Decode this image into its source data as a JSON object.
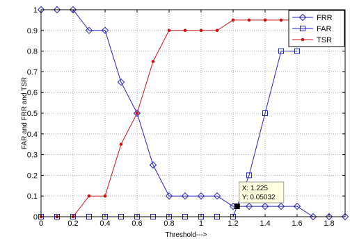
{
  "chart_data": {
    "type": "line",
    "xlabel": "Threshold--->",
    "ylabel": "FAR and FRR and TSR",
    "xlim": [
      0,
      1.9
    ],
    "ylim": [
      0,
      1
    ],
    "xticks": [
      "0",
      "0.2",
      "0.4",
      "0.6",
      "0.8",
      "1",
      "1.2",
      "1.4",
      "1.6",
      "1.8"
    ],
    "yticks": [
      "0",
      "0.1",
      "0.2",
      "0.3",
      "0.4",
      "0.5",
      "0.6",
      "0.7",
      "0.8",
      "0.9",
      "1"
    ],
    "grid": true,
    "legend_position": "top-right",
    "series": [
      {
        "name": "FRR",
        "marker": "diamond",
        "color": "#2020c0",
        "x": [
          0,
          0.1,
          0.2,
          0.3,
          0.4,
          0.5,
          0.6,
          0.7,
          0.8,
          0.9,
          1.0,
          1.1,
          1.2,
          1.3,
          1.4,
          1.5,
          1.6,
          1.7,
          1.8,
          1.9
        ],
        "y": [
          1,
          1,
          1,
          0.9,
          0.9,
          0.65,
          0.5,
          0.25,
          0.1,
          0.1,
          0.1,
          0.1,
          0.05,
          0.05,
          0.05,
          0.05,
          0.05,
          0,
          0,
          0
        ]
      },
      {
        "name": "FAR",
        "marker": "square",
        "color": "#2020c0",
        "x": [
          0,
          0.1,
          0.2,
          0.3,
          0.4,
          0.5,
          0.6,
          0.7,
          0.8,
          0.9,
          1.0,
          1.1,
          1.2,
          1.3,
          1.4,
          1.5,
          1.6
        ],
        "y": [
          0,
          0,
          0,
          0,
          0,
          0,
          0,
          0,
          0,
          0,
          0,
          0,
          0,
          0.2,
          0.5,
          0.8,
          0.8
        ]
      },
      {
        "name": "TSR",
        "marker": "dot",
        "color": "#d01010",
        "x": [
          0,
          0.1,
          0.2,
          0.3,
          0.4,
          0.5,
          0.6,
          0.7,
          0.8,
          0.9,
          1.0,
          1.1,
          1.2,
          1.3,
          1.4,
          1.5,
          1.6
        ],
        "y": [
          0,
          0,
          0,
          0.1,
          0.1,
          0.35,
          0.5,
          0.75,
          0.9,
          0.9,
          0.9,
          0.9,
          0.95,
          0.95,
          0.95,
          0.95,
          0.95
        ]
      }
    ],
    "datatip": {
      "x": 1.225,
      "y": 0.05032,
      "line1": "X: 1.225",
      "line2": "Y: 0.05032"
    }
  }
}
